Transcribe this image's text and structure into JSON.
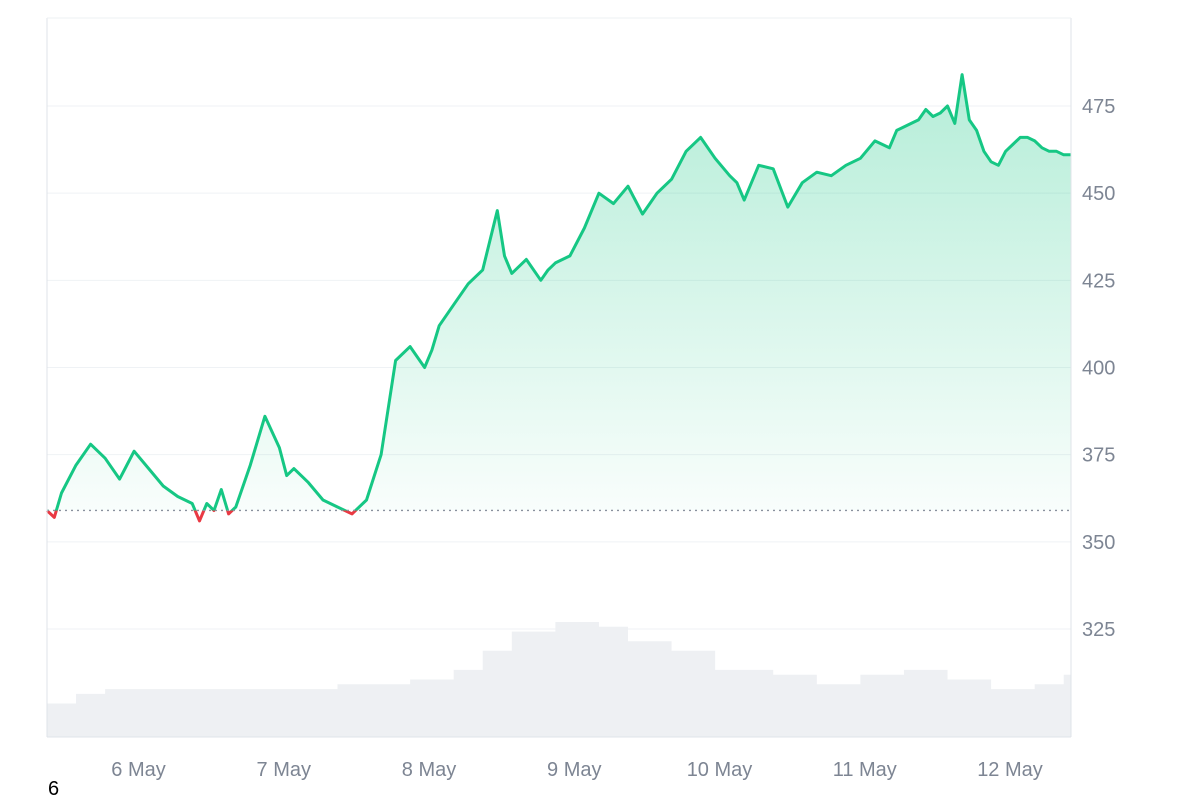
{
  "chart_data": {
    "type": "area",
    "title": "",
    "xlabel": "",
    "ylabel": "",
    "x_tick_labels": [
      "6 May",
      "7 May",
      "8 May",
      "9 May",
      "10 May",
      "11 May",
      "12 May"
    ],
    "y_ticks": [
      325,
      350,
      375,
      400,
      425,
      450,
      475
    ],
    "y_tick_labels": [
      "325",
      "350",
      "375",
      "400",
      "425",
      "450",
      "475"
    ],
    "ylim": [
      300,
      500
    ],
    "y_axis_position": "right",
    "grid": true,
    "baseline": 359,
    "colors": {
      "above": "#16c784",
      "below": "#ea3943",
      "volume": "#eef0f3",
      "grid": "#eff2f5"
    },
    "series": [
      {
        "x": [
          0.0,
          0.05,
          0.1,
          0.2,
          0.3,
          0.4,
          0.5,
          0.6,
          0.7,
          0.8,
          0.9,
          1.0,
          1.05,
          1.1,
          1.15,
          1.2,
          1.25,
          1.3,
          1.4,
          1.5,
          1.6,
          1.65,
          1.7,
          1.8,
          1.9,
          2.0,
          2.1,
          2.2,
          2.3,
          2.4,
          2.5,
          2.6,
          2.65,
          2.7,
          2.8,
          2.9,
          3.0,
          3.1,
          3.15,
          3.2,
          3.3,
          3.4,
          3.45,
          3.5,
          3.6,
          3.7,
          3.8,
          3.9,
          4.0,
          4.1,
          4.15,
          4.2,
          4.3,
          4.4,
          4.5,
          4.6,
          4.7,
          4.75,
          4.8,
          4.9,
          5.0,
          5.1,
          5.2,
          5.3,
          5.4,
          5.5,
          5.6,
          5.7,
          5.8,
          5.85,
          5.9,
          5.95,
          6.0,
          6.05,
          6.1,
          6.15,
          6.2,
          6.25,
          6.3,
          6.35,
          6.4,
          6.45,
          6.5,
          6.55,
          6.6,
          6.65,
          6.7,
          6.75,
          6.8,
          6.85,
          6.9,
          6.95,
          7.0,
          7.05
        ],
        "y": [
          359,
          357,
          364,
          372,
          378,
          374,
          368,
          376,
          371,
          366,
          363,
          361,
          356,
          361,
          359,
          365,
          358,
          360,
          372,
          386,
          377,
          369,
          371,
          367,
          362,
          360,
          358,
          362,
          375,
          402,
          406,
          400,
          405,
          412,
          418,
          424,
          428,
          445,
          432,
          427,
          431,
          425,
          428,
          430,
          432,
          440,
          450,
          447,
          452,
          444,
          447,
          450,
          454,
          462,
          466,
          460,
          455,
          453,
          448,
          458,
          457,
          446,
          453,
          456,
          455,
          458,
          460,
          465,
          463,
          468,
          469,
          470,
          471,
          474,
          472,
          473,
          475,
          470,
          484,
          471,
          468,
          462,
          459,
          458,
          462,
          464,
          466,
          466,
          465,
          463,
          462,
          462,
          461,
          461
        ]
      }
    ],
    "volume": {
      "x": [
        0.0,
        0.2,
        0.4,
        0.7,
        1.0,
        1.3,
        1.6,
        2.0,
        2.2,
        2.5,
        2.8,
        3.0,
        3.2,
        3.5,
        3.8,
        4.0,
        4.3,
        4.6,
        5.0,
        5.3,
        5.6,
        5.9,
        6.2,
        6.5,
        6.8,
        7.0,
        7.05
      ],
      "values": [
        7,
        9,
        10,
        10,
        10,
        10,
        10,
        11,
        11,
        12,
        14,
        18,
        22,
        24,
        23,
        20,
        18,
        14,
        13,
        11,
        13,
        14,
        12,
        10,
        11,
        13,
        14
      ]
    }
  },
  "footer": {
    "corner_label": "6"
  }
}
